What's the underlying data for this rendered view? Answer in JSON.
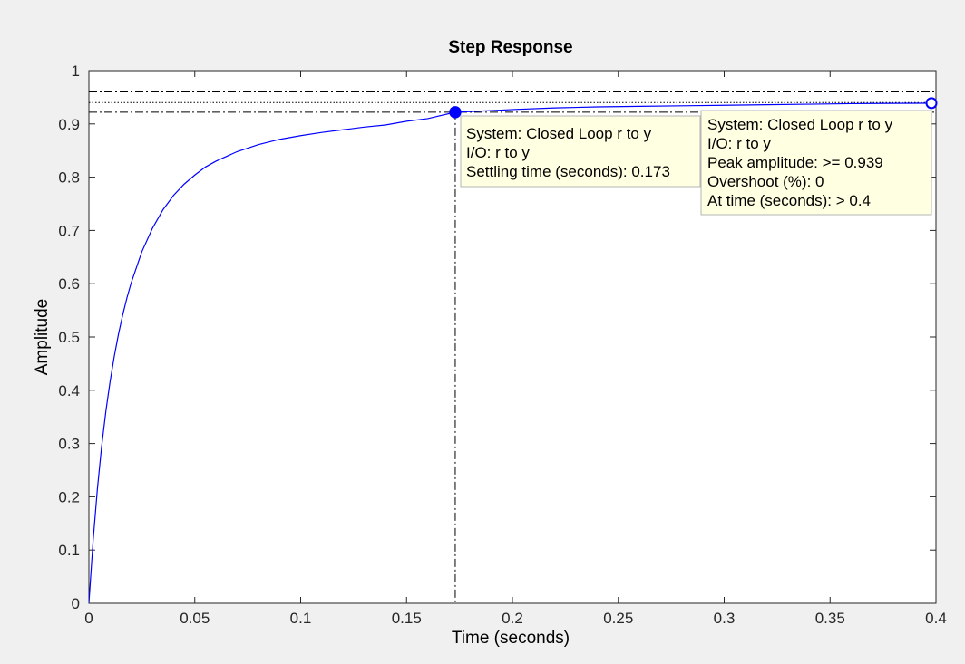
{
  "chart_data": {
    "type": "line",
    "title": "Step Response",
    "xlabel": "Time (seconds)",
    "ylabel": "Amplitude",
    "xlim": [
      0,
      0.4
    ],
    "ylim": [
      0,
      1
    ],
    "xticks": [
      0,
      0.05,
      0.1,
      0.15,
      0.2,
      0.25,
      0.3,
      0.35,
      0.4
    ],
    "xtick_labels": [
      "0",
      "0.05",
      "0.1",
      "0.15",
      "0.2",
      "0.25",
      "0.3",
      "0.35",
      "0.4"
    ],
    "yticks": [
      0,
      0.1,
      0.2,
      0.3,
      0.4,
      0.5,
      0.6,
      0.7,
      0.8,
      0.9,
      1
    ],
    "ytick_labels": [
      "0",
      "0.1",
      "0.2",
      "0.3",
      "0.4",
      "0.5",
      "0.6",
      "0.7",
      "0.8",
      "0.9",
      "1"
    ],
    "grid": false,
    "line_color": "#0000ff",
    "series": [
      {
        "x": [
          0,
          0.002,
          0.004,
          0.006,
          0.008,
          0.01,
          0.012,
          0.014,
          0.016,
          0.018,
          0.02,
          0.025,
          0.03,
          0.035,
          0.04,
          0.045,
          0.05,
          0.055,
          0.06,
          0.07,
          0.08,
          0.09,
          0.1,
          0.11,
          0.12,
          0.13,
          0.14,
          0.15,
          0.16,
          0.173,
          0.19,
          0.2,
          0.22,
          0.24,
          0.26,
          0.28,
          0.3,
          0.32,
          0.34,
          0.36,
          0.38,
          0.4
        ],
        "values": [
          0,
          0.118,
          0.214,
          0.294,
          0.36,
          0.416,
          0.464,
          0.506,
          0.542,
          0.574,
          0.602,
          0.66,
          0.704,
          0.739,
          0.766,
          0.787,
          0.804,
          0.819,
          0.83,
          0.848,
          0.861,
          0.871,
          0.878,
          0.884,
          0.889,
          0.894,
          0.898,
          0.905,
          0.91,
          0.922,
          0.925,
          0.927,
          0.93,
          0.932,
          0.933,
          0.934,
          0.935,
          0.936,
          0.937,
          0.938,
          0.9385,
          0.939
        ]
      }
    ],
    "reference_lines": {
      "steady_state": 0.94,
      "upper_settling_band": 0.96,
      "lower_settling_band": 0.922,
      "settling_time": 0.173
    },
    "markers": {
      "settling": {
        "x": 0.173,
        "y": 0.922
      },
      "peak": {
        "x": 0.4,
        "y": 0.939
      }
    },
    "datatips": {
      "settling": [
        "System: Closed Loop r to y",
        "I/O: r to y",
        "Settling time (seconds): 0.173"
      ],
      "peak": [
        "System: Closed Loop r to y",
        "I/O: r to y",
        "Peak amplitude: >= 0.939",
        "Overshoot (%): 0",
        "At time (seconds): > 0.4"
      ]
    }
  }
}
